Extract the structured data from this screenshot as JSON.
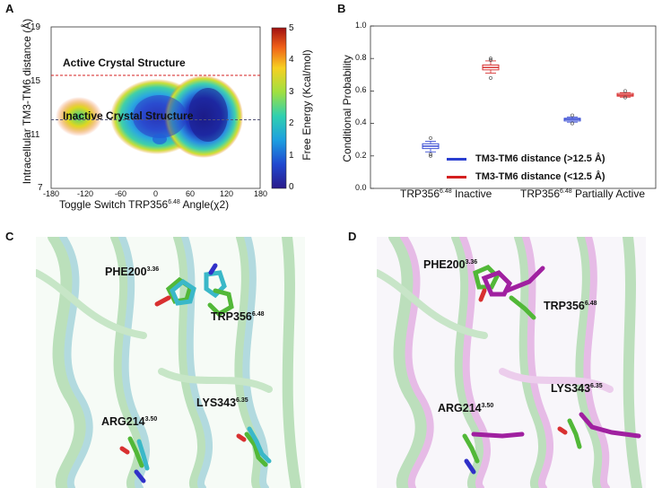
{
  "panels": {
    "a": {
      "letter": "A",
      "ylabel": "Intracellular TM3-TM6 distance (Å)",
      "xlabel_main": "Toggle Switch TRP356",
      "xlabel_sup": "6.48",
      "xlabel_end": " Angle(χ2)",
      "x_ticks": [
        "-180",
        "-120",
        "-60",
        "0",
        "60",
        "120",
        "180"
      ],
      "y_ticks": [
        "7",
        "11",
        "15",
        "19"
      ],
      "active_line_label": "Active Crystal Structure",
      "inactive_line_label": "Inactive Crystal Structure",
      "colorbar_label": "Free Energy (Kcal/mol)",
      "colorbar_ticks": [
        "0",
        "1",
        "2",
        "3",
        "4",
        "5"
      ],
      "active_line_y": 15.4,
      "inactive_line_y": 12.1,
      "colors": {
        "active_line": "#d42020",
        "inactive_line": "#555577"
      }
    },
    "b": {
      "letter": "B",
      "ylabel": "Conditional Probability",
      "y_ticks": [
        "0.0",
        "0.2",
        "0.4",
        "0.6",
        "0.8",
        "1.0"
      ],
      "group1_label": "TRP356",
      "group1_sup": "6.48",
      "group1_end": " Inactive",
      "group2_label": "TRP356",
      "group2_sup": "6.48",
      "group2_end": " Partially Active",
      "legend": [
        {
          "label": "TM3-TM6 distance (>12.5 Å)",
          "color": "#2a3fd0"
        },
        {
          "label": "TM3-TM6 distance (<12.5 Å)",
          "color": "#d42020"
        }
      ]
    },
    "c": {
      "letter": "C",
      "labels": {
        "phe": {
          "main": "PHE200",
          "sup": "3.36"
        },
        "trp": {
          "main": "TRP356",
          "sup": "6.48"
        },
        "lys": {
          "main": "LYS343",
          "sup": "6.35"
        },
        "arg": {
          "main": "ARG214",
          "sup": "3.50"
        }
      }
    },
    "d": {
      "letter": "D",
      "labels": {
        "phe": {
          "main": "PHE200",
          "sup": "3.36"
        },
        "trp": {
          "main": "TRP356",
          "sup": "6.48"
        },
        "lys": {
          "main": "LYS343",
          "sup": "6.35"
        },
        "arg": {
          "main": "ARG214",
          "sup": "3.50"
        }
      }
    }
  },
  "chart_data": [
    {
      "type": "heatmap",
      "xlim": [
        -180,
        180
      ],
      "ylim": [
        7,
        19
      ],
      "clim": [
        0,
        5
      ],
      "basins": [
        {
          "x": 0,
          "y": 11.5,
          "depth": 0.9
        },
        {
          "x": 90,
          "y": 11.5,
          "depth": 0.4
        }
      ]
    },
    {
      "type": "box",
      "ylim": [
        0,
        1.0
      ],
      "boxes": [
        {
          "group": "Inactive",
          "series": ">12.5",
          "median": 0.26,
          "q1": 0.245,
          "q3": 0.275,
          "whisker_low": 0.225,
          "whisker_high": 0.29,
          "outliers": [
            0.21,
            0.2,
            0.31
          ]
        },
        {
          "group": "Inactive",
          "series": "<12.5",
          "median": 0.745,
          "q1": 0.73,
          "q3": 0.76,
          "whisker_low": 0.71,
          "whisker_high": 0.785,
          "outliers": [
            0.68,
            0.79,
            0.8
          ]
        },
        {
          "group": "Partially Active",
          "series": ">12.5",
          "median": 0.425,
          "q1": 0.415,
          "q3": 0.432,
          "whisker_low": 0.408,
          "whisker_high": 0.44,
          "outliers": [
            0.4,
            0.45
          ]
        },
        {
          "group": "Partially Active",
          "series": "<12.5",
          "median": 0.575,
          "q1": 0.568,
          "q3": 0.585,
          "whisker_low": 0.562,
          "whisker_high": 0.59,
          "outliers": [
            0.56,
            0.6
          ]
        }
      ]
    }
  ]
}
